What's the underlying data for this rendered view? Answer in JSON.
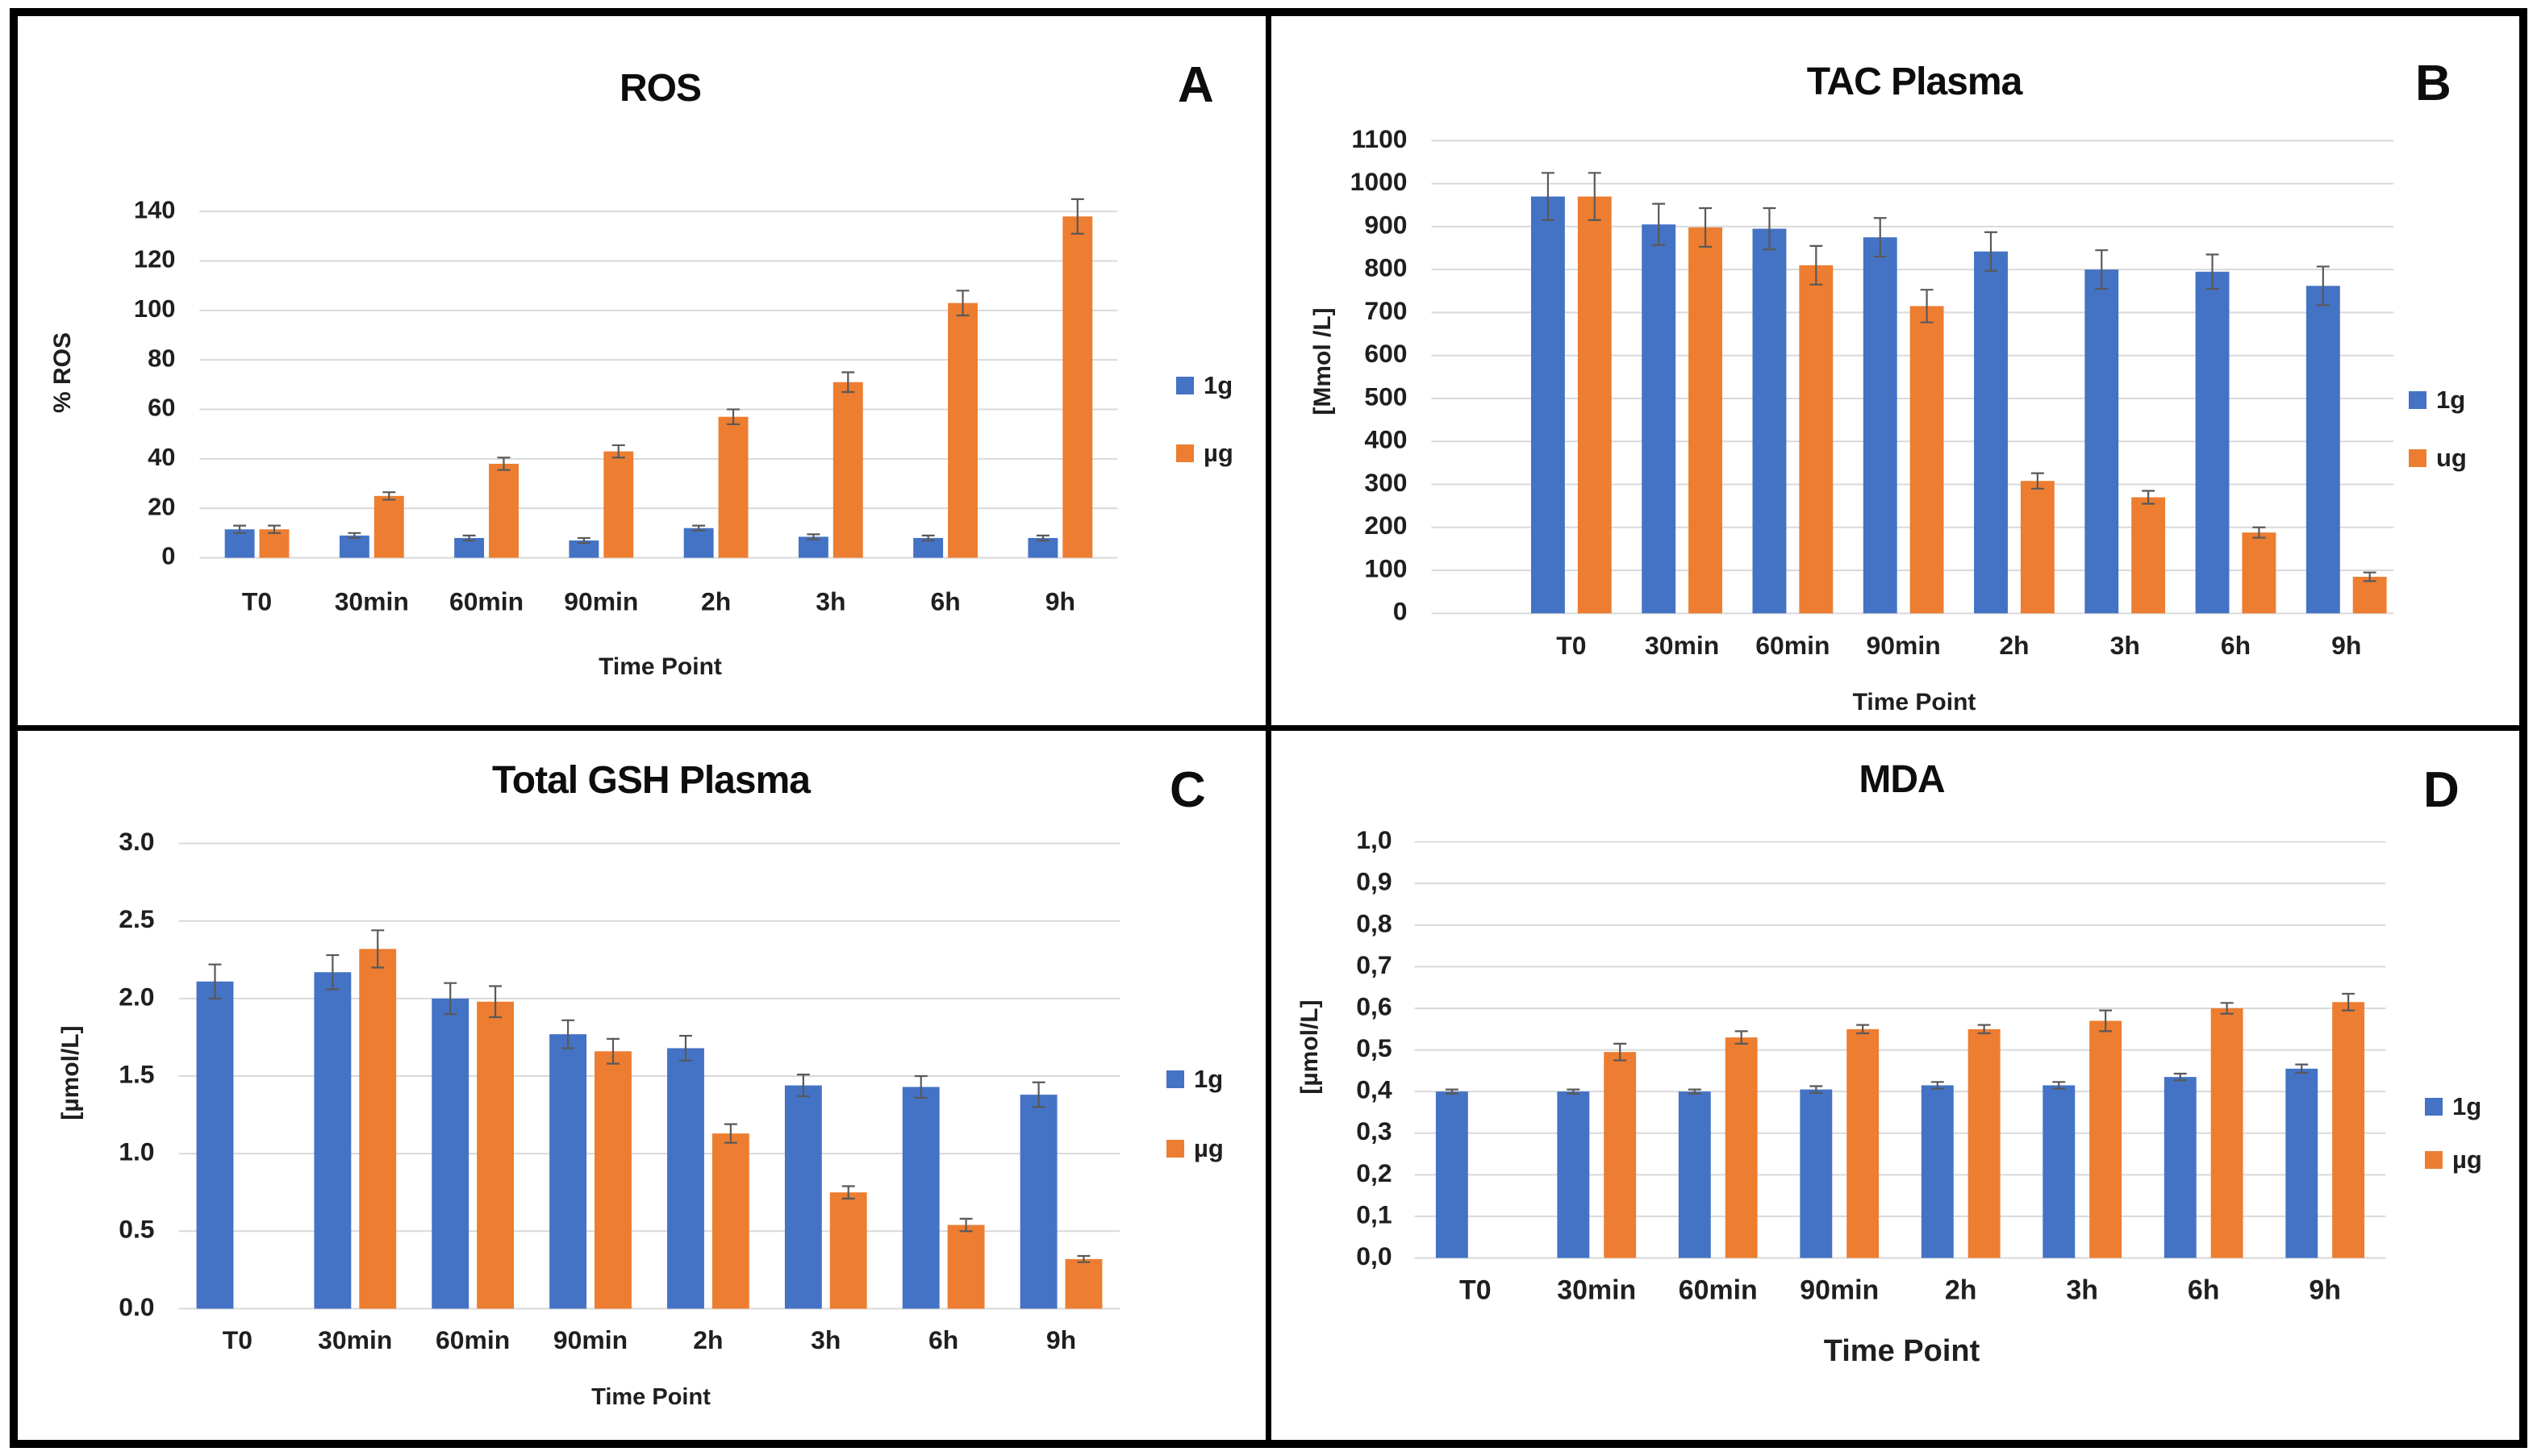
{
  "figure": {
    "background": "#ffffff",
    "border_color": "#000000",
    "panel_labels": [
      "A",
      "B",
      "C",
      "D"
    ]
  },
  "colors": {
    "series_blue": "#4472C4",
    "series_orange": "#ED7D31",
    "gridline": "#d9d9d9",
    "error_bar": "#595959",
    "text": "#1f1f1f"
  },
  "chart_data": [
    {
      "type": "bar",
      "panel_label": "A",
      "title": "ROS",
      "xlabel": "Time Point",
      "ylabel": "% ROS",
      "categories": [
        "T0",
        "30min",
        "60min",
        "90min",
        "2h",
        "3h",
        "6h",
        "9h"
      ],
      "series": [
        {
          "name": "1g",
          "color": "#4472C4",
          "values": [
            11.5,
            9,
            8,
            7,
            12,
            8.5,
            8,
            8
          ],
          "errors": [
            1.5,
            1,
            1,
            1,
            1,
            1,
            1,
            1
          ]
        },
        {
          "name": "µg",
          "color": "#ED7D31",
          "values": [
            11.5,
            25,
            38,
            43,
            57,
            71,
            103,
            138
          ],
          "errors": [
            1.5,
            1.5,
            2.5,
            2.5,
            3,
            4,
            5,
            7
          ]
        }
      ],
      "ylim": [
        0,
        140
      ],
      "ytick_step": 20,
      "ytick_decimals": 0,
      "decimal_separator": ".",
      "grid": true,
      "legend_position": "right",
      "error_bars": true
    },
    {
      "type": "bar",
      "panel_label": "B",
      "title": "TAC Plasma",
      "xlabel": "Time Point",
      "ylabel": "[Mmol /L]",
      "categories": [
        "T0",
        "30min",
        "60min",
        "90min",
        "2h",
        "3h",
        "6h",
        "9h"
      ],
      "series": [
        {
          "name": "1g",
          "color": "#4472C4",
          "values": [
            970,
            905,
            895,
            875,
            842,
            800,
            795,
            762
          ],
          "errors": [
            55,
            48,
            48,
            45,
            45,
            45,
            40,
            45
          ]
        },
        {
          "name": "ug",
          "color": "#ED7D31",
          "values": [
            970,
            898,
            810,
            715,
            308,
            270,
            188,
            85
          ],
          "errors": [
            55,
            45,
            45,
            38,
            18,
            15,
            12,
            10
          ]
        }
      ],
      "ylim": [
        0,
        1100
      ],
      "ytick_step": 100,
      "ytick_decimals": 0,
      "decimal_separator": ".",
      "grid": true,
      "legend_position": "right",
      "error_bars": true
    },
    {
      "type": "bar",
      "panel_label": "C",
      "title": "Total GSH Plasma",
      "xlabel": "Time Point",
      "ylabel": "[µmol/L]",
      "categories": [
        "T0",
        "30min",
        "60min",
        "90min",
        "2h",
        "3h",
        "6h",
        "9h"
      ],
      "series": [
        {
          "name": "1g",
          "color": "#4472C4",
          "values": [
            2.11,
            2.17,
            2.0,
            1.77,
            1.68,
            1.44,
            1.43,
            1.38
          ],
          "errors": [
            0.11,
            0.11,
            0.1,
            0.09,
            0.08,
            0.07,
            0.07,
            0.08
          ]
        },
        {
          "name": "µg",
          "color": "#ED7D31",
          "values": [
            null,
            2.32,
            1.98,
            1.66,
            1.13,
            0.75,
            0.54,
            0.32
          ],
          "errors": [
            null,
            0.12,
            0.1,
            0.08,
            0.06,
            0.04,
            0.04,
            0.02
          ]
        }
      ],
      "ylim": [
        0,
        3.0
      ],
      "ytick_step": 0.5,
      "ytick_decimals": 1,
      "decimal_separator": ".",
      "grid": true,
      "legend_position": "right",
      "error_bars": true
    },
    {
      "type": "bar",
      "panel_label": "D",
      "title": "MDA",
      "xlabel": "Time Point",
      "ylabel": "[µmol/L]",
      "categories": [
        "T0",
        "30min",
        "60min",
        "90min",
        "2h",
        "3h",
        "6h",
        "9h"
      ],
      "series": [
        {
          "name": "1g",
          "color": "#4472C4",
          "values": [
            0.4,
            0.4,
            0.4,
            0.405,
            0.415,
            0.415,
            0.435,
            0.455
          ],
          "errors": [
            0.005,
            0.005,
            0.005,
            0.008,
            0.008,
            0.008,
            0.008,
            0.01
          ]
        },
        {
          "name": "µg",
          "color": "#ED7D31",
          "values": [
            null,
            0.495,
            0.53,
            0.55,
            0.55,
            0.57,
            0.6,
            0.615
          ],
          "errors": [
            null,
            0.02,
            0.015,
            0.01,
            0.01,
            0.025,
            0.013,
            0.02
          ]
        }
      ],
      "ylim": [
        0,
        1.0
      ],
      "ytick_step": 0.1,
      "ytick_decimals": 1,
      "decimal_separator": ",",
      "grid": true,
      "legend_position": "right",
      "error_bars": true
    }
  ]
}
